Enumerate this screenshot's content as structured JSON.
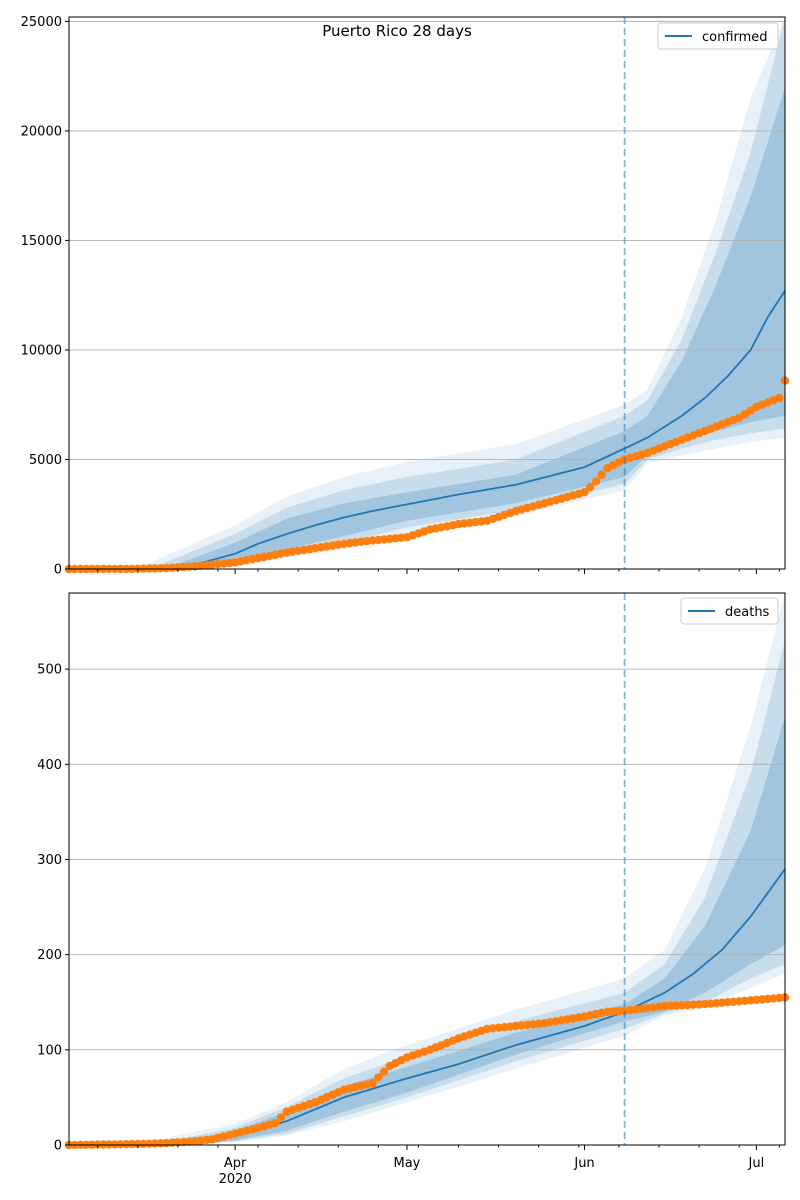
{
  "chart_data": [
    {
      "type": "line",
      "title": "Puerto Rico 28 days",
      "xlabel": "",
      "ylabel": "",
      "ylim": [
        0,
        25200
      ],
      "xlim": [
        "2020-03-03",
        "2020-07-06"
      ],
      "x_ticks": [
        {
          "date": "2020-04-01",
          "label": "Apr",
          "sublabel": "2020"
        },
        {
          "date": "2020-05-01",
          "label": "May",
          "sublabel": ""
        },
        {
          "date": "2020-06-01",
          "label": "Jun",
          "sublabel": ""
        },
        {
          "date": "2020-07-01",
          "label": "Jul",
          "sublabel": ""
        }
      ],
      "y_ticks": [
        0,
        5000,
        10000,
        15000,
        20000,
        25000
      ],
      "grid": "horizontal",
      "legend": {
        "position": "top-right",
        "entries": [
          "confirmed"
        ]
      },
      "vline_date": "2020-06-08",
      "colors": {
        "model": "#1f77b4",
        "observed": "#ff7f0e",
        "band": "#1f77b4"
      },
      "series": [
        {
          "name": "confirmed",
          "kind": "line",
          "x": [
            "2020-03-03",
            "2020-03-15",
            "2020-03-20",
            "2020-03-25",
            "2020-04-01",
            "2020-04-05",
            "2020-04-10",
            "2020-04-15",
            "2020-04-20",
            "2020-04-25",
            "2020-05-01",
            "2020-05-10",
            "2020-05-20",
            "2020-06-01",
            "2020-06-08",
            "2020-06-12",
            "2020-06-18",
            "2020-06-22",
            "2020-06-26",
            "2020-06-30",
            "2020-07-03",
            "2020-07-06"
          ],
          "values": [
            0,
            0,
            20,
            200,
            700,
            1150,
            1600,
            2000,
            2350,
            2650,
            2950,
            3400,
            3850,
            4650,
            5500,
            6000,
            7000,
            7800,
            8800,
            10000,
            11500,
            12700
          ]
        },
        {
          "name": "",
          "kind": "band",
          "x": [
            "2020-03-20",
            "2020-04-01",
            "2020-04-10",
            "2020-04-20",
            "2020-05-01",
            "2020-05-20",
            "2020-06-08",
            "2020-06-12",
            "2020-06-18",
            "2020-06-24",
            "2020-06-30",
            "2020-07-06"
          ],
          "lower": [
            0,
            300,
            900,
            1500,
            2200,
            3000,
            4200,
            5200,
            5800,
            6300,
            6700,
            7000
          ],
          "upper": [
            50,
            1200,
            2300,
            3000,
            3500,
            4300,
            6300,
            7000,
            9500,
            13000,
            17000,
            22000
          ]
        },
        {
          "name": "",
          "kind": "band",
          "x": [
            "2020-03-18",
            "2020-04-01",
            "2020-04-10",
            "2020-04-20",
            "2020-05-01",
            "2020-05-20",
            "2020-06-08",
            "2020-06-12",
            "2020-06-18",
            "2020-06-24",
            "2020-06-30",
            "2020-07-06"
          ],
          "lower": [
            0,
            200,
            700,
            1200,
            1900,
            2700,
            3900,
            5000,
            5500,
            5900,
            6200,
            6400
          ],
          "upper": [
            100,
            1600,
            2800,
            3600,
            4200,
            5000,
            7000,
            7700,
            10500,
            14500,
            19000,
            25200
          ]
        },
        {
          "name": "",
          "kind": "band",
          "x": [
            "2020-03-16",
            "2020-04-01",
            "2020-04-10",
            "2020-04-20",
            "2020-05-01",
            "2020-05-20",
            "2020-06-08",
            "2020-06-12",
            "2020-06-18",
            "2020-06-24",
            "2020-06-30",
            "2020-07-06"
          ],
          "lower": [
            0,
            100,
            500,
            900,
            1600,
            2400,
            3600,
            4800,
            5200,
            5500,
            5800,
            6000
          ],
          "upper": [
            150,
            2000,
            3300,
            4200,
            4900,
            5700,
            7500,
            8200,
            11500,
            16000,
            21500,
            25200
          ]
        },
        {
          "name": "",
          "kind": "observed",
          "x": [
            "2020-03-03",
            "2020-03-14",
            "2020-03-20",
            "2020-03-25",
            "2020-04-01",
            "2020-04-05",
            "2020-04-10",
            "2020-04-15",
            "2020-04-20",
            "2020-04-25",
            "2020-05-01",
            "2020-05-05",
            "2020-05-10",
            "2020-05-15",
            "2020-05-20",
            "2020-05-25",
            "2020-06-01",
            "2020-06-03",
            "2020-06-05",
            "2020-06-08",
            "2020-06-12",
            "2020-06-16",
            "2020-06-20",
            "2020-06-24",
            "2020-06-28",
            "2020-07-01",
            "2020-07-05",
            "2020-07-06"
          ],
          "values": [
            0,
            5,
            40,
            120,
            300,
            500,
            750,
            950,
            1150,
            1300,
            1450,
            1800,
            2050,
            2200,
            2650,
            3000,
            3500,
            4000,
            4600,
            5000,
            5300,
            5700,
            6100,
            6500,
            6900,
            7400,
            7800,
            8600
          ]
        }
      ]
    },
    {
      "type": "line",
      "title": "",
      "xlabel": "",
      "ylabel": "",
      "ylim": [
        0,
        580
      ],
      "xlim": [
        "2020-03-03",
        "2020-07-06"
      ],
      "x_ticks": [
        {
          "date": "2020-04-01",
          "label": "Apr",
          "sublabel": "2020"
        },
        {
          "date": "2020-05-01",
          "label": "May",
          "sublabel": ""
        },
        {
          "date": "2020-06-01",
          "label": "Jun",
          "sublabel": ""
        },
        {
          "date": "2020-07-01",
          "label": "Jul",
          "sublabel": ""
        }
      ],
      "y_ticks": [
        0,
        100,
        200,
        300,
        400,
        500
      ],
      "grid": "horizontal",
      "legend": {
        "position": "top-right",
        "entries": [
          "deaths"
        ]
      },
      "vline_date": "2020-06-08",
      "colors": {
        "model": "#1f77b4",
        "observed": "#ff7f0e",
        "band": "#1f77b4"
      },
      "series": [
        {
          "name": "deaths",
          "kind": "line",
          "x": [
            "2020-03-03",
            "2020-03-25",
            "2020-04-01",
            "2020-04-10",
            "2020-04-20",
            "2020-05-01",
            "2020-05-10",
            "2020-05-20",
            "2020-06-01",
            "2020-06-08",
            "2020-06-15",
            "2020-06-20",
            "2020-06-25",
            "2020-06-30",
            "2020-07-03",
            "2020-07-06"
          ],
          "values": [
            0,
            2,
            10,
            25,
            50,
            70,
            85,
            105,
            125,
            140,
            160,
            180,
            205,
            240,
            265,
            290
          ]
        },
        {
          "name": "",
          "kind": "band",
          "x": [
            "2020-03-25",
            "2020-04-01",
            "2020-04-10",
            "2020-04-20",
            "2020-05-01",
            "2020-05-20",
            "2020-06-08",
            "2020-06-15",
            "2020-06-22",
            "2020-06-30",
            "2020-07-06"
          ],
          "lower": [
            0,
            5,
            15,
            35,
            55,
            95,
            130,
            140,
            160,
            190,
            210
          ],
          "upper": [
            5,
            15,
            35,
            62,
            82,
            118,
            148,
            175,
            230,
            330,
            450
          ]
        },
        {
          "name": "",
          "kind": "band",
          "x": [
            "2020-03-23",
            "2020-04-01",
            "2020-04-10",
            "2020-04-20",
            "2020-05-01",
            "2020-05-20",
            "2020-06-08",
            "2020-06-15",
            "2020-06-22",
            "2020-06-30",
            "2020-07-06"
          ],
          "lower": [
            0,
            4,
            12,
            30,
            50,
            88,
            122,
            138,
            150,
            175,
            190
          ],
          "upper": [
            7,
            18,
            40,
            70,
            93,
            130,
            160,
            190,
            260,
            390,
            530
          ]
        },
        {
          "name": "",
          "kind": "band",
          "x": [
            "2020-03-21",
            "2020-04-01",
            "2020-04-10",
            "2020-04-20",
            "2020-05-01",
            "2020-05-20",
            "2020-06-08",
            "2020-06-15",
            "2020-06-22",
            "2020-06-30",
            "2020-07-06"
          ],
          "lower": [
            0,
            3,
            10,
            25,
            45,
            80,
            115,
            136,
            145,
            165,
            180
          ],
          "upper": [
            9,
            22,
            45,
            80,
            105,
            142,
            175,
            205,
            290,
            440,
            580
          ]
        },
        {
          "name": "",
          "kind": "observed",
          "x": [
            "2020-03-03",
            "2020-03-15",
            "2020-03-20",
            "2020-03-25",
            "2020-03-28",
            "2020-04-01",
            "2020-04-05",
            "2020-04-08",
            "2020-04-10",
            "2020-04-15",
            "2020-04-20",
            "2020-04-25",
            "2020-04-28",
            "2020-05-01",
            "2020-05-05",
            "2020-05-10",
            "2020-05-15",
            "2020-05-20",
            "2020-05-25",
            "2020-06-01",
            "2020-06-05",
            "2020-06-08",
            "2020-06-15",
            "2020-06-22",
            "2020-06-30",
            "2020-07-06"
          ],
          "values": [
            0,
            1,
            2,
            4,
            6,
            12,
            18,
            23,
            35,
            45,
            58,
            65,
            83,
            92,
            100,
            112,
            122,
            125,
            128,
            135,
            140,
            141,
            146,
            148,
            152,
            155
          ]
        }
      ]
    }
  ]
}
